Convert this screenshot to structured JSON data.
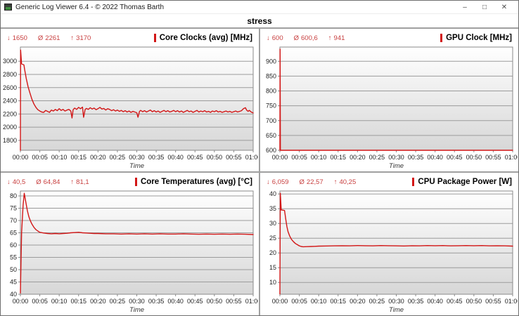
{
  "window": {
    "title": "Generic Log Viewer 6.4 - © 2022 Thomas Barth",
    "controls": {
      "minimize": "–",
      "maximize": "□",
      "close": "✕"
    }
  },
  "header": {
    "label": "stress"
  },
  "colors": {
    "line_red": "#d21616",
    "stats_red": "#c84040",
    "grid": "#9b9b9b",
    "plot_border": "#8a8a8a",
    "plot_bg_top": "#ffffff",
    "plot_bg_bottom": "#d7d7d7",
    "divider": "#a0a0a0"
  },
  "icons": {
    "min_arrow": "↓",
    "avg_symbol": "Ø",
    "max_arrow": "↑"
  },
  "time_axis": {
    "label": "Time",
    "range_minutes": [
      0,
      60
    ],
    "ticks": [
      "00:00",
      "00:05",
      "00:10",
      "00:15",
      "00:20",
      "00:25",
      "00:30",
      "00:35",
      "00:40",
      "00:45",
      "00:50",
      "00:55",
      "01:00"
    ]
  },
  "chart_data": [
    {
      "id": "core-clocks",
      "type": "line",
      "title": "Core Clocks (avg) [MHz]",
      "stats": {
        "min": "1650",
        "avg": "2261",
        "max": "3170"
      },
      "ylim": [
        1650,
        3215
      ],
      "yticks": [
        1800,
        2000,
        2200,
        2400,
        2600,
        2800,
        3000
      ],
      "xlabel": "Time",
      "points": [
        [
          0,
          1650
        ],
        [
          0.05,
          3170
        ],
        [
          0.3,
          2960
        ],
        [
          0.9,
          2945
        ],
        [
          1.1,
          2870
        ],
        [
          1.5,
          2740
        ],
        [
          2,
          2610
        ],
        [
          2.5,
          2510
        ],
        [
          3,
          2420
        ],
        [
          3.5,
          2350
        ],
        [
          4,
          2300
        ],
        [
          4.5,
          2265
        ],
        [
          5,
          2245
        ],
        [
          5.5,
          2230
        ],
        [
          6,
          2225
        ],
        [
          6.5,
          2255
        ],
        [
          7,
          2240
        ],
        [
          7.5,
          2225
        ],
        [
          8,
          2260
        ],
        [
          8.5,
          2245
        ],
        [
          9,
          2270
        ],
        [
          9.5,
          2250
        ],
        [
          10,
          2280
        ],
        [
          10.5,
          2255
        ],
        [
          11,
          2270
        ],
        [
          11.5,
          2245
        ],
        [
          12,
          2260
        ],
        [
          12.5,
          2270
        ],
        [
          13,
          2245
        ],
        [
          13.3,
          2140
        ],
        [
          13.6,
          2265
        ],
        [
          14,
          2290
        ],
        [
          14.5,
          2270
        ],
        [
          15,
          2300
        ],
        [
          15.5,
          2280
        ],
        [
          16,
          2305
        ],
        [
          16.3,
          2150
        ],
        [
          16.7,
          2270
        ],
        [
          17,
          2285
        ],
        [
          17.5,
          2270
        ],
        [
          18,
          2295
        ],
        [
          18.5,
          2275
        ],
        [
          19,
          2290
        ],
        [
          19.5,
          2265
        ],
        [
          20,
          2280
        ],
        [
          20.5,
          2300
        ],
        [
          21,
          2275
        ],
        [
          21.5,
          2285
        ],
        [
          22,
          2260
        ],
        [
          22.5,
          2280
        ],
        [
          23,
          2270
        ],
        [
          23.5,
          2250
        ],
        [
          24,
          2265
        ],
        [
          24.5,
          2245
        ],
        [
          25,
          2260
        ],
        [
          25.5,
          2240
        ],
        [
          26,
          2255
        ],
        [
          26.5,
          2235
        ],
        [
          27,
          2250
        ],
        [
          27.5,
          2230
        ],
        [
          28,
          2245
        ],
        [
          28.5,
          2225
        ],
        [
          29,
          2240
        ],
        [
          29.5,
          2230
        ],
        [
          30,
          2220
        ],
        [
          30.3,
          2150
        ],
        [
          30.7,
          2240
        ],
        [
          31,
          2255
        ],
        [
          31.5,
          2235
        ],
        [
          32,
          2250
        ],
        [
          32.5,
          2230
        ],
        [
          33,
          2245
        ],
        [
          33.5,
          2260
        ],
        [
          34,
          2235
        ],
        [
          34.5,
          2250
        ],
        [
          35,
          2230
        ],
        [
          35.5,
          2245
        ],
        [
          36,
          2225
        ],
        [
          36.5,
          2240
        ],
        [
          37,
          2255
        ],
        [
          37.5,
          2235
        ],
        [
          38,
          2250
        ],
        [
          38.5,
          2230
        ],
        [
          39,
          2240
        ],
        [
          39.5,
          2255
        ],
        [
          40,
          2235
        ],
        [
          40.5,
          2250
        ],
        [
          41,
          2230
        ],
        [
          41.5,
          2245
        ],
        [
          42,
          2225
        ],
        [
          42.5,
          2240
        ],
        [
          43,
          2255
        ],
        [
          43.5,
          2235
        ],
        [
          44,
          2245
        ],
        [
          44.5,
          2225
        ],
        [
          45,
          2240
        ],
        [
          45.5,
          2255
        ],
        [
          46,
          2230
        ],
        [
          46.5,
          2245
        ],
        [
          47,
          2235
        ],
        [
          47.5,
          2250
        ],
        [
          48,
          2230
        ],
        [
          48.5,
          2240
        ],
        [
          49,
          2225
        ],
        [
          49.5,
          2245
        ],
        [
          50,
          2235
        ],
        [
          50.5,
          2250
        ],
        [
          51,
          2230
        ],
        [
          51.5,
          2240
        ],
        [
          52,
          2225
        ],
        [
          52.5,
          2235
        ],
        [
          53,
          2245
        ],
        [
          53.5,
          2230
        ],
        [
          54,
          2240
        ],
        [
          54.5,
          2225
        ],
        [
          55,
          2235
        ],
        [
          55.5,
          2245
        ],
        [
          56,
          2230
        ],
        [
          56.5,
          2240
        ],
        [
          57,
          2250
        ],
        [
          57.5,
          2280
        ],
        [
          58,
          2295
        ],
        [
          58.3,
          2260
        ],
        [
          58.7,
          2240
        ],
        [
          59,
          2255
        ],
        [
          59.5,
          2230
        ],
        [
          60,
          2215
        ]
      ]
    },
    {
      "id": "gpu-clock",
      "type": "line",
      "title": "GPU Clock [MHz]",
      "stats": {
        "min": "600",
        "avg": "600,6",
        "max": "941"
      },
      "ylim": [
        600,
        948
      ],
      "yticks": [
        600,
        650,
        700,
        750,
        800,
        850,
        900
      ],
      "xlabel": "Time",
      "points": [
        [
          0,
          600
        ],
        [
          0.05,
          941
        ],
        [
          0.12,
          600
        ],
        [
          60,
          600
        ]
      ]
    },
    {
      "id": "core-temperatures",
      "type": "line",
      "title": "Core Temperatures (avg) [°C]",
      "stats": {
        "min": "40,5",
        "avg": "64,84",
        "max": "81,1"
      },
      "ylim": [
        40,
        82
      ],
      "yticks": [
        40,
        45,
        50,
        55,
        60,
        65,
        70,
        75,
        80
      ],
      "xlabel": "Time",
      "points": [
        [
          0,
          40.5
        ],
        [
          0.3,
          65
        ],
        [
          0.7,
          76.5
        ],
        [
          1,
          81.1
        ],
        [
          1.4,
          77.5
        ],
        [
          1.8,
          74
        ],
        [
          2.2,
          71.5
        ],
        [
          2.6,
          69.8
        ],
        [
          3,
          68.5
        ],
        [
          3.5,
          67.2
        ],
        [
          4,
          66.3
        ],
        [
          4.5,
          65.7
        ],
        [
          5,
          65.2
        ],
        [
          6,
          64.9
        ],
        [
          7,
          64.7
        ],
        [
          8,
          64.6
        ],
        [
          9,
          64.7
        ],
        [
          10,
          64.6
        ],
        [
          11,
          64.7
        ],
        [
          12,
          64.8
        ],
        [
          13,
          65
        ],
        [
          14,
          65.1
        ],
        [
          15,
          65.2
        ],
        [
          16,
          65
        ],
        [
          17,
          64.9
        ],
        [
          18,
          64.8
        ],
        [
          19,
          64.7
        ],
        [
          20,
          64.7
        ],
        [
          22,
          64.6
        ],
        [
          24,
          64.6
        ],
        [
          26,
          64.5
        ],
        [
          28,
          64.6
        ],
        [
          30,
          64.5
        ],
        [
          32,
          64.6
        ],
        [
          34,
          64.5
        ],
        [
          36,
          64.6
        ],
        [
          38,
          64.5
        ],
        [
          40,
          64.5
        ],
        [
          42,
          64.6
        ],
        [
          44,
          64.5
        ],
        [
          46,
          64.4
        ],
        [
          48,
          64.5
        ],
        [
          50,
          64.4
        ],
        [
          52,
          64.5
        ],
        [
          54,
          64.4
        ],
        [
          56,
          64.5
        ],
        [
          58,
          64.4
        ],
        [
          60,
          64.3
        ]
      ]
    },
    {
      "id": "cpu-package-power",
      "type": "line",
      "title": "CPU Package Power [W]",
      "stats": {
        "min": "6,059",
        "avg": "22,57",
        "max": "40,25"
      },
      "ylim": [
        6,
        41
      ],
      "yticks": [
        10,
        15,
        20,
        25,
        30,
        35,
        40
      ],
      "xlabel": "Time",
      "points": [
        [
          0,
          6.059
        ],
        [
          0.1,
          40.25
        ],
        [
          0.35,
          34.6
        ],
        [
          1.2,
          34.4
        ],
        [
          1.5,
          31.5
        ],
        [
          1.8,
          29
        ],
        [
          2.1,
          27.2
        ],
        [
          2.5,
          25.8
        ],
        [
          3,
          24.6
        ],
        [
          3.5,
          23.8
        ],
        [
          4,
          23.2
        ],
        [
          4.5,
          22.8
        ],
        [
          5,
          22.4
        ],
        [
          5.5,
          22.2
        ],
        [
          6,
          22.1
        ],
        [
          7,
          22.15
        ],
        [
          8,
          22.2
        ],
        [
          9,
          22.25
        ],
        [
          10,
          22.3
        ],
        [
          12,
          22.35
        ],
        [
          14,
          22.4
        ],
        [
          16,
          22.45
        ],
        [
          18,
          22.4
        ],
        [
          20,
          22.5
        ],
        [
          22,
          22.45
        ],
        [
          24,
          22.4
        ],
        [
          26,
          22.5
        ],
        [
          28,
          22.45
        ],
        [
          30,
          22.4
        ],
        [
          32,
          22.35
        ],
        [
          34,
          22.45
        ],
        [
          36,
          22.4
        ],
        [
          38,
          22.5
        ],
        [
          40,
          22.45
        ],
        [
          42,
          22.5
        ],
        [
          44,
          22.4
        ],
        [
          46,
          22.45
        ],
        [
          48,
          22.5
        ],
        [
          50,
          22.45
        ],
        [
          52,
          22.5
        ],
        [
          54,
          22.4
        ],
        [
          56,
          22.45
        ],
        [
          58,
          22.4
        ],
        [
          60,
          22.3
        ]
      ]
    }
  ]
}
